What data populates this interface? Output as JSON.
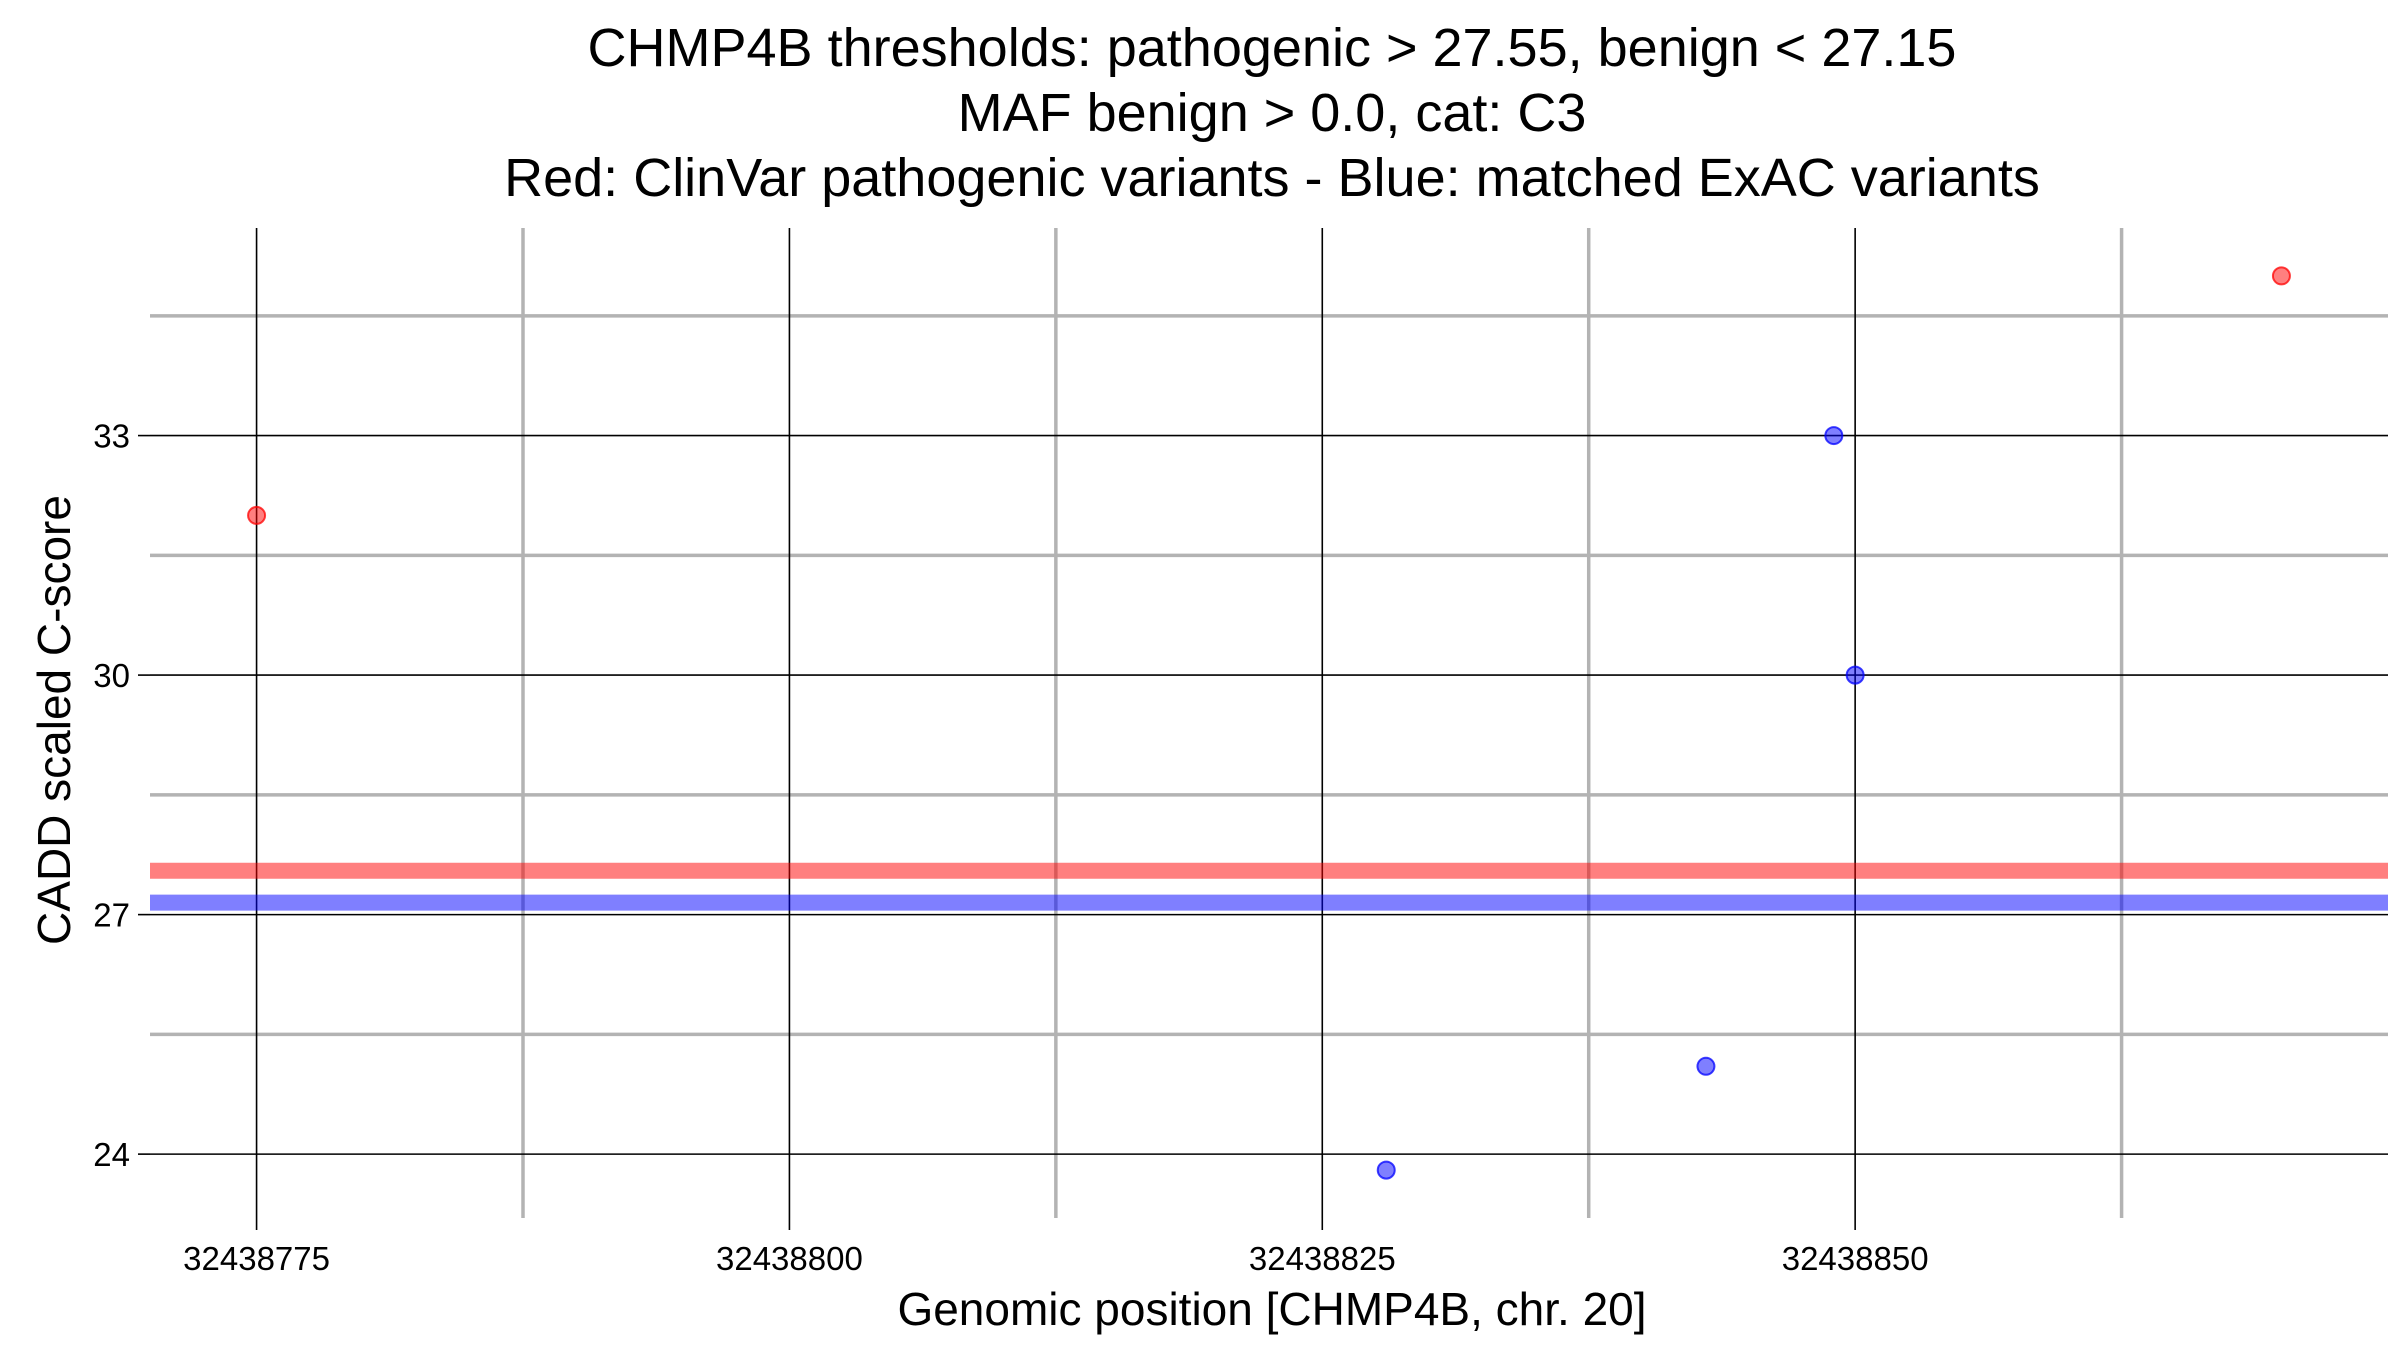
{
  "chart_data": {
    "type": "scatter",
    "title_lines": [
      "CHMP4B thresholds: pathogenic > 27.55, benign < 27.15",
      "MAF benign > 0.0, cat: C3",
      "Red: ClinVar pathogenic variants - Blue: matched ExAC variants"
    ],
    "xlabel": "Genomic position [CHMP4B, chr. 20]",
    "ylabel": "CADD scaled C-score",
    "xlim": [
      32438770,
      32438875
    ],
    "ylim": [
      23.2,
      35.6
    ],
    "x_ticks": [
      32438775,
      32438800,
      32438825,
      32438850
    ],
    "x_tick_labels": [
      "32438775",
      "32438800",
      "32438825",
      "32438850"
    ],
    "x_minor_ticks": [
      32438787.5,
      32438812.5,
      32438837.5,
      32438862.5
    ],
    "y_ticks": [
      24,
      27,
      30,
      33
    ],
    "y_tick_labels": [
      "24",
      "27",
      "30",
      "33"
    ],
    "y_minor_ticks": [
      25.5,
      28.5,
      31.5,
      34.5
    ],
    "grid": true,
    "thresholds": [
      {
        "name": "pathogenic",
        "value": 27.55,
        "color": "#ff0000"
      },
      {
        "name": "benign",
        "value": 27.15,
        "color": "#0000ff"
      }
    ],
    "series": [
      {
        "color": "#ff0000",
        "points": [
          {
            "x": 32438775,
            "y": 32.0
          },
          {
            "x": 32438870,
            "y": 35.0
          }
        ]
      },
      {
        "color": "#0000ff",
        "points": [
          {
            "x": 32438849,
            "y": 33.0
          },
          {
            "x": 32438850,
            "y": 30.0
          },
          {
            "x": 32438843,
            "y": 25.1
          },
          {
            "x": 32438828,
            "y": 23.8
          }
        ]
      }
    ]
  }
}
